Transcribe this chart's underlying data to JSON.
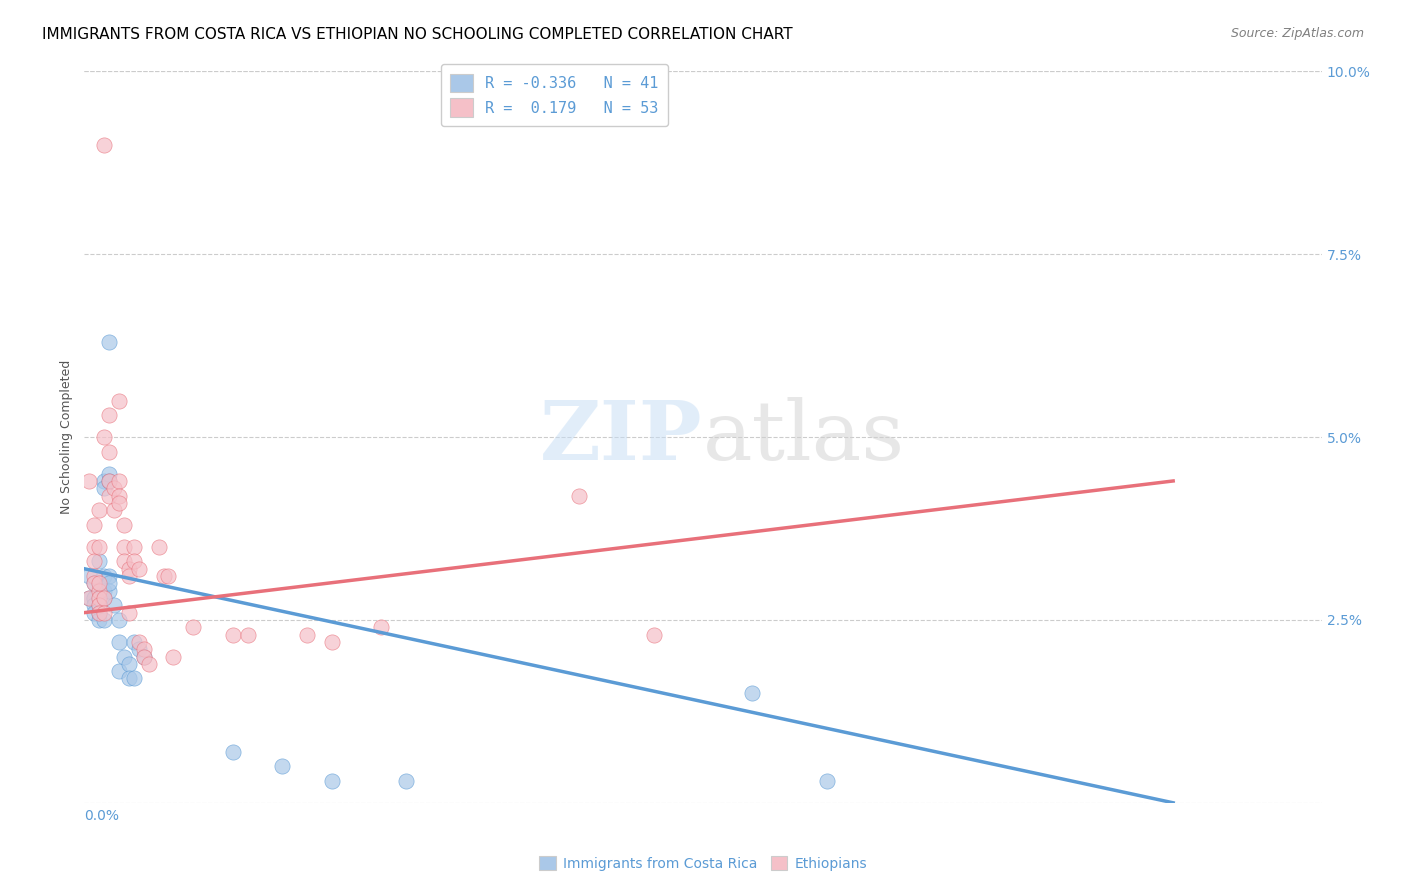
{
  "title": "IMMIGRANTS FROM COSTA RICA VS ETHIOPIAN NO SCHOOLING COMPLETED CORRELATION CHART",
  "source": "Source: ZipAtlas.com",
  "ylabel": "No Schooling Completed",
  "right_yticks": [
    0.0,
    0.025,
    0.05,
    0.075,
    0.1
  ],
  "right_yticklabels": [
    "",
    "2.5%",
    "5.0%",
    "7.5%",
    "10.0%"
  ],
  "xlim": [
    0.0,
    0.25
  ],
  "ylim": [
    0.0,
    0.1
  ],
  "legend_items": [
    {
      "label": "R = -0.336   N = 41",
      "color": "#aec6e8"
    },
    {
      "label": "R =  0.179   N = 53",
      "color": "#f4a7b0"
    }
  ],
  "blue_scatter": [
    [
      0.001,
      0.028
    ],
    [
      0.001,
      0.031
    ],
    [
      0.002,
      0.03
    ],
    [
      0.002,
      0.028
    ],
    [
      0.002,
      0.027
    ],
    [
      0.002,
      0.026
    ],
    [
      0.003,
      0.033
    ],
    [
      0.003,
      0.03
    ],
    [
      0.003,
      0.028
    ],
    [
      0.003,
      0.027
    ],
    [
      0.003,
      0.026
    ],
    [
      0.003,
      0.025
    ],
    [
      0.004,
      0.031
    ],
    [
      0.004,
      0.029
    ],
    [
      0.004,
      0.028
    ],
    [
      0.004,
      0.025
    ],
    [
      0.004,
      0.044
    ],
    [
      0.004,
      0.043
    ],
    [
      0.005,
      0.045
    ],
    [
      0.005,
      0.044
    ],
    [
      0.005,
      0.031
    ],
    [
      0.005,
      0.029
    ],
    [
      0.005,
      0.063
    ],
    [
      0.005,
      0.03
    ],
    [
      0.006,
      0.027
    ],
    [
      0.007,
      0.025
    ],
    [
      0.007,
      0.022
    ],
    [
      0.007,
      0.018
    ],
    [
      0.008,
      0.02
    ],
    [
      0.009,
      0.019
    ],
    [
      0.009,
      0.017
    ],
    [
      0.01,
      0.022
    ],
    [
      0.01,
      0.017
    ],
    [
      0.011,
      0.021
    ],
    [
      0.012,
      0.02
    ],
    [
      0.03,
      0.007
    ],
    [
      0.04,
      0.005
    ],
    [
      0.05,
      0.003
    ],
    [
      0.065,
      0.003
    ],
    [
      0.135,
      0.015
    ],
    [
      0.15,
      0.003
    ]
  ],
  "pink_scatter": [
    [
      0.001,
      0.028
    ],
    [
      0.001,
      0.044
    ],
    [
      0.002,
      0.038
    ],
    [
      0.002,
      0.035
    ],
    [
      0.002,
      0.033
    ],
    [
      0.002,
      0.031
    ],
    [
      0.002,
      0.03
    ],
    [
      0.003,
      0.029
    ],
    [
      0.003,
      0.028
    ],
    [
      0.003,
      0.027
    ],
    [
      0.003,
      0.026
    ],
    [
      0.003,
      0.04
    ],
    [
      0.003,
      0.035
    ],
    [
      0.003,
      0.03
    ],
    [
      0.004,
      0.028
    ],
    [
      0.004,
      0.026
    ],
    [
      0.004,
      0.09
    ],
    [
      0.004,
      0.05
    ],
    [
      0.005,
      0.053
    ],
    [
      0.005,
      0.048
    ],
    [
      0.005,
      0.044
    ],
    [
      0.005,
      0.042
    ],
    [
      0.006,
      0.043
    ],
    [
      0.006,
      0.04
    ],
    [
      0.007,
      0.055
    ],
    [
      0.007,
      0.044
    ],
    [
      0.007,
      0.042
    ],
    [
      0.007,
      0.041
    ],
    [
      0.008,
      0.038
    ],
    [
      0.008,
      0.035
    ],
    [
      0.008,
      0.033
    ],
    [
      0.009,
      0.032
    ],
    [
      0.009,
      0.031
    ],
    [
      0.009,
      0.026
    ],
    [
      0.01,
      0.035
    ],
    [
      0.01,
      0.033
    ],
    [
      0.011,
      0.032
    ],
    [
      0.011,
      0.022
    ],
    [
      0.012,
      0.021
    ],
    [
      0.012,
      0.02
    ],
    [
      0.013,
      0.019
    ],
    [
      0.015,
      0.035
    ],
    [
      0.016,
      0.031
    ],
    [
      0.017,
      0.031
    ],
    [
      0.018,
      0.02
    ],
    [
      0.022,
      0.024
    ],
    [
      0.03,
      0.023
    ],
    [
      0.033,
      0.023
    ],
    [
      0.045,
      0.023
    ],
    [
      0.05,
      0.022
    ],
    [
      0.06,
      0.024
    ],
    [
      0.1,
      0.042
    ],
    [
      0.115,
      0.023
    ]
  ],
  "blue_line_x": [
    0.0,
    0.22
  ],
  "blue_line_y": [
    0.032,
    0.0
  ],
  "pink_line_x": [
    0.0,
    0.22
  ],
  "pink_line_y": [
    0.026,
    0.044
  ],
  "scatter_size": 120,
  "blue_color": "#5b9bd5",
  "pink_color": "#e8707a",
  "blue_fill": "#aac8e8",
  "pink_fill": "#f5c0c8",
  "title_fontsize": 11,
  "source_fontsize": 9,
  "axis_label_fontsize": 9
}
